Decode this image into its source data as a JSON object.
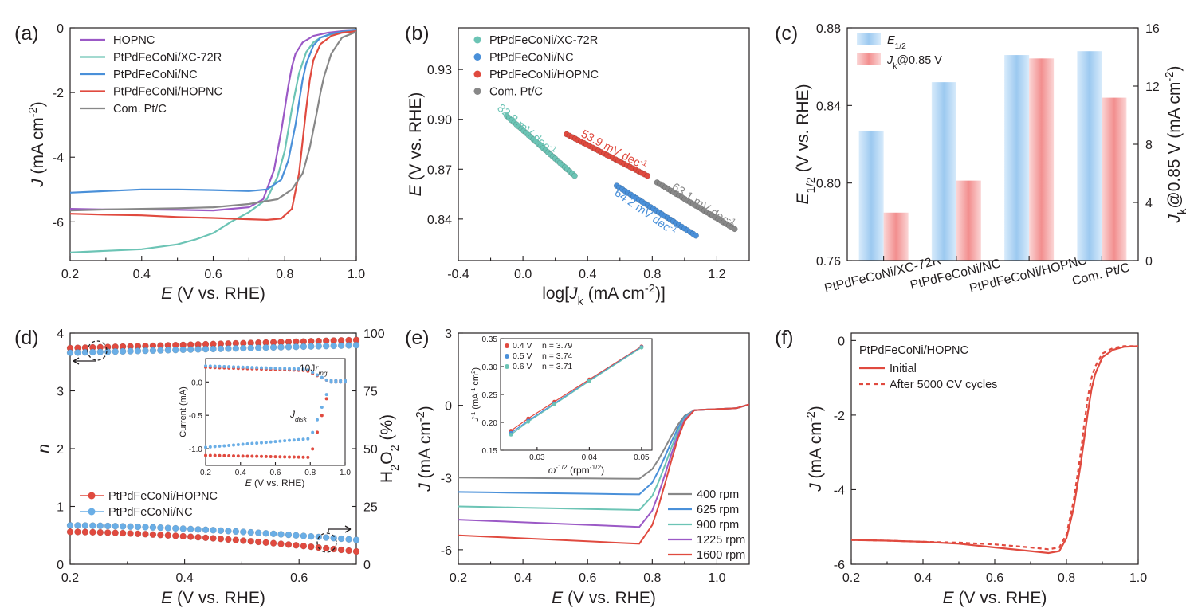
{
  "chart_data": [
    {
      "id": "a",
      "type": "line",
      "panel_label": "(a)",
      "xlabel": "E (V vs. RHE)",
      "ylabel": "J (mA cm-2)",
      "xlim": [
        0.2,
        1.0
      ],
      "ylim": [
        -7.2,
        0
      ],
      "xticks": [
        0.2,
        0.4,
        0.6,
        0.8,
        1.0
      ],
      "yticks": [
        -6,
        -4,
        -2,
        0
      ],
      "xtick_labels": [
        "0.2",
        "0.4",
        "0.6",
        "0.8",
        "1.0"
      ],
      "ytick_labels": [
        "-6",
        "-4",
        "-2",
        "0"
      ],
      "legend": "top-left",
      "series": [
        {
          "name": "HOPNC",
          "color": "#9b59c6",
          "x": [
            0.2,
            0.3,
            0.4,
            0.5,
            0.6,
            0.7,
            0.74,
            0.77,
            0.79,
            0.8,
            0.81,
            0.82,
            0.83,
            0.85,
            0.88,
            0.92,
            0.96,
            1.0
          ],
          "y": [
            -5.6,
            -5.62,
            -5.62,
            -5.63,
            -5.65,
            -5.55,
            -5.3,
            -4.4,
            -3.2,
            -2.5,
            -1.8,
            -1.2,
            -0.8,
            -0.45,
            -0.25,
            -0.15,
            -0.1,
            -0.08
          ]
        },
        {
          "name": "PtPdFeCoNi/XC-72R",
          "color": "#6cc4b5",
          "x": [
            0.2,
            0.3,
            0.4,
            0.5,
            0.55,
            0.6,
            0.65,
            0.7,
            0.75,
            0.78,
            0.8,
            0.82,
            0.84,
            0.86,
            0.88,
            0.9,
            0.93,
            0.97,
            1.0
          ],
          "y": [
            -6.95,
            -6.9,
            -6.85,
            -6.7,
            -6.55,
            -6.35,
            -6.0,
            -5.7,
            -5.3,
            -4.6,
            -3.8,
            -2.5,
            -1.4,
            -0.75,
            -0.45,
            -0.3,
            -0.2,
            -0.12,
            -0.08
          ]
        },
        {
          "name": "PtPdFeCoNi/NC",
          "color": "#4a90d9",
          "x": [
            0.2,
            0.3,
            0.4,
            0.5,
            0.6,
            0.7,
            0.75,
            0.79,
            0.81,
            0.83,
            0.84,
            0.85,
            0.86,
            0.88,
            0.9,
            0.93,
            0.97,
            1.0
          ],
          "y": [
            -5.1,
            -5.05,
            -5.0,
            -5.0,
            -5.02,
            -5.05,
            -5.0,
            -4.7,
            -4.1,
            -3.0,
            -2.3,
            -1.6,
            -1.1,
            -0.55,
            -0.3,
            -0.18,
            -0.1,
            -0.08
          ]
        },
        {
          "name": "PtPdFeCoNi/HOPNC",
          "color": "#e04a3f",
          "x": [
            0.2,
            0.3,
            0.4,
            0.5,
            0.6,
            0.7,
            0.75,
            0.79,
            0.82,
            0.84,
            0.85,
            0.86,
            0.87,
            0.88,
            0.9,
            0.93,
            0.96,
            1.0
          ],
          "y": [
            -5.75,
            -5.78,
            -5.8,
            -5.85,
            -5.88,
            -5.92,
            -5.94,
            -5.9,
            -5.6,
            -4.5,
            -3.5,
            -2.5,
            -1.6,
            -1.0,
            -0.5,
            -0.25,
            -0.15,
            -0.1
          ]
        },
        {
          "name": "Com. Pt/C",
          "color": "#888888",
          "x": [
            0.2,
            0.3,
            0.4,
            0.5,
            0.6,
            0.7,
            0.78,
            0.82,
            0.85,
            0.87,
            0.89,
            0.9,
            0.91,
            0.93,
            0.96,
            1.0
          ],
          "y": [
            -5.65,
            -5.62,
            -5.6,
            -5.58,
            -5.55,
            -5.45,
            -5.3,
            -5.0,
            -4.5,
            -3.7,
            -2.6,
            -2.0,
            -1.5,
            -0.8,
            -0.3,
            -0.12
          ]
        }
      ]
    },
    {
      "id": "b",
      "type": "scatter",
      "panel_label": "(b)",
      "xlabel": "log[Jk (mA cm-2)]",
      "ylabel": "E (V vs. RHE)",
      "xlim": [
        -0.4,
        1.4
      ],
      "ylim": [
        0.815,
        0.955
      ],
      "xticks": [
        -0.4,
        0.0,
        0.4,
        0.8,
        1.2
      ],
      "yticks": [
        0.84,
        0.87,
        0.9,
        0.93
      ],
      "xtick_labels": [
        "-0.4",
        "0.0",
        "0.4",
        "0.8",
        "1.2"
      ],
      "ytick_labels": [
        "0.84",
        "0.87",
        "0.90",
        "0.93"
      ],
      "legend": "top-left",
      "series": [
        {
          "name": "PtPdFeCoNi/XC-72R",
          "color": "#6cc4b5",
          "x_range": [
            -0.1,
            0.32
          ],
          "e_range": [
            0.902,
            0.866
          ],
          "slope_label": "82.8 mV dec-1"
        },
        {
          "name": "PtPdFeCoNi/NC",
          "color": "#4a90d9",
          "x_range": [
            0.58,
            1.07
          ],
          "e_range": [
            0.86,
            0.83
          ],
          "slope_label": "64.2 mV dec-1"
        },
        {
          "name": "PtPdFeCoNi/HOPNC",
          "color": "#e04a3f",
          "x_range": [
            0.27,
            0.77
          ],
          "e_range": [
            0.891,
            0.866
          ],
          "slope_label": "53.9 mV dec-1"
        },
        {
          "name": "Com. Pt/C",
          "color": "#888888",
          "x_range": [
            0.83,
            1.31
          ],
          "e_range": [
            0.862,
            0.834
          ],
          "slope_label": "63.1 mV dec-1"
        }
      ]
    },
    {
      "id": "c",
      "type": "bar",
      "panel_label": "(c)",
      "categories": [
        "PtPdFeCoNi/XC-72R",
        "PtPdFeCoNi/NC",
        "PtPdFeCoNi/HOPNC",
        "Com. Pt/C"
      ],
      "ylabel_left": "E1/2 (V vs. RHE)",
      "ylabel_right": "Jk@0.85 V (mA cm-2)",
      "ylim_left": [
        0.76,
        0.88
      ],
      "ylim_right": [
        0,
        16
      ],
      "yticks_left": [
        0.76,
        0.8,
        0.84,
        0.88
      ],
      "yticks_right": [
        0,
        4,
        8,
        12,
        16
      ],
      "ytick_labels_left": [
        "0.76",
        "0.80",
        "0.84",
        "0.88"
      ],
      "ytick_labels_right": [
        "0",
        "4",
        "8",
        "12",
        "16"
      ],
      "legend": "top-left",
      "series": [
        {
          "name": "E1/2",
          "axis": "left",
          "color": "#9cc9f0",
          "values": [
            0.827,
            0.852,
            0.866,
            0.868
          ]
        },
        {
          "name": "Jk@0.85 V",
          "axis": "right",
          "color": "#f28e8e",
          "values": [
            3.3,
            5.5,
            13.9,
            11.2
          ]
        }
      ]
    },
    {
      "id": "d",
      "type": "scatter",
      "panel_label": "(d)",
      "xlabel": "E (V vs. RHE)",
      "ylabel_left": "n",
      "ylabel_right": "H2O2 (%)",
      "xlim": [
        0.2,
        0.7
      ],
      "ylim_left": [
        0,
        4
      ],
      "ylim_right": [
        0,
        100
      ],
      "xticks": [
        0.2,
        0.4,
        0.6
      ],
      "yticks_left": [
        0,
        1,
        2,
        3,
        4
      ],
      "yticks_right": [
        0,
        25,
        50,
        75,
        100
      ],
      "xtick_labels": [
        "0.2",
        "0.4",
        "0.6"
      ],
      "ytick_labels_left": [
        "0",
        "1",
        "2",
        "3",
        "4"
      ],
      "ytick_labels_right": [
        "0",
        "25",
        "50",
        "75",
        "100"
      ],
      "legend": "bottom-left",
      "series": [
        {
          "name": "PtPdFeCoNi/HOPNC",
          "color": "#e04a3f",
          "n_range": [
            3.74,
            3.88
          ],
          "h2o2_range": [
            14,
            5.5
          ]
        },
        {
          "name": "PtPdFeCoNi/NC",
          "color": "#6aaee6",
          "n_range": [
            3.66,
            3.79
          ],
          "h2o2_range": [
            16.8,
            10.5
          ]
        }
      ],
      "inset": {
        "xlabel": "E (V vs. RHE)",
        "ylabel": "Current (mA)",
        "xlim": [
          0.2,
          1.0
        ],
        "ylim": [
          -1.25,
          0.35
        ],
        "xticks": [
          0.2,
          0.4,
          0.6,
          0.8,
          1.0
        ],
        "yticks": [
          -1.0,
          -0.5,
          0.0
        ],
        "xtick_labels": [
          "0.2",
          "0.4",
          "0.6",
          "0.8",
          "1.0"
        ],
        "ytick_labels": [
          "-1.0",
          "-0.5",
          "0.0"
        ],
        "annotations": [
          "10Jring",
          "Jdisk"
        ]
      }
    },
    {
      "id": "e",
      "type": "line",
      "panel_label": "(e)",
      "xlabel": "E (V vs. RHE)",
      "ylabel": "J (mA cm-2)",
      "xlim": [
        0.2,
        1.1
      ],
      "ylim": [
        -6.6,
        3
      ],
      "xticks": [
        0.2,
        0.4,
        0.6,
        0.8,
        1.0
      ],
      "yticks": [
        -6,
        -3,
        0,
        3
      ],
      "xtick_labels": [
        "0.2",
        "0.4",
        "0.6",
        "0.8",
        "1.0"
      ],
      "ytick_labels": [
        "-6",
        "-3",
        "0",
        "3"
      ],
      "legend": "bottom-right",
      "series": [
        {
          "name": "400 rpm",
          "color": "#888888",
          "plateau": -3.0,
          "plateau_end": -3.05
        },
        {
          "name": "625 rpm",
          "color": "#4a90d9",
          "plateau": -3.6,
          "plateau_end": -3.7
        },
        {
          "name": "900 rpm",
          "color": "#6cc4b5",
          "plateau": -4.2,
          "plateau_end": -4.35
        },
        {
          "name": "1225 rpm",
          "color": "#9b59c6",
          "plateau": -4.75,
          "plateau_end": -5.05
        },
        {
          "name": "1600 rpm",
          "color": "#e04a3f",
          "plateau": -5.4,
          "plateau_end": -5.75
        }
      ],
      "inset": {
        "xlabel": "ω-1/2 (rpm-1/2)",
        "ylabel": "J-1 (mA-1 cm2)",
        "xlim": [
          0.023,
          0.052
        ],
        "ylim": [
          0.15,
          0.35
        ],
        "xticks": [
          0.03,
          0.04,
          0.05
        ],
        "yticks": [
          0.15,
          0.2,
          0.25,
          0.3,
          0.35
        ],
        "xtick_labels": [
          "0.03",
          "0.04",
          "0.05"
        ],
        "ytick_labels": [
          "0.15",
          "0.20",
          "0.25",
          "0.30",
          "0.35"
        ],
        "series": [
          {
            "name": "0.4 V",
            "n_label": "n = 3.79",
            "color": "#e04a3f",
            "x": [
              0.025,
              0.0283,
              0.0333,
              0.04,
              0.05
            ],
            "y": [
              0.185,
              0.207,
              0.237,
              0.277,
              0.336
            ]
          },
          {
            "name": "0.5 V",
            "n_label": "n = 3.74",
            "color": "#4a90d9",
            "x": [
              0.025,
              0.0283,
              0.0333,
              0.04,
              0.05
            ],
            "y": [
              0.181,
              0.203,
              0.234,
              0.275,
              0.335
            ]
          },
          {
            "name": "0.6 V",
            "n_label": "n = 3.71",
            "color": "#6cc4b5",
            "x": [
              0.025,
              0.0283,
              0.0333,
              0.04,
              0.05
            ],
            "y": [
              0.178,
              0.201,
              0.232,
              0.274,
              0.334
            ]
          }
        ]
      }
    },
    {
      "id": "f",
      "type": "line",
      "panel_label": "(f)",
      "title": "PtPdFeCoNi/HOPNC",
      "xlabel": "E (V vs. RHE)",
      "ylabel": "J (mA cm-2)",
      "xlim": [
        0.2,
        1.0
      ],
      "ylim": [
        -6,
        0.2
      ],
      "xticks": [
        0.2,
        0.4,
        0.6,
        0.8,
        1.0
      ],
      "yticks": [
        -6,
        -4,
        -2,
        0
      ],
      "xtick_labels": [
        "0.2",
        "0.4",
        "0.6",
        "0.8",
        "1.0"
      ],
      "ytick_labels": [
        "-6",
        "-4",
        "-2",
        "0"
      ],
      "legend": "top-left",
      "series": [
        {
          "name": "Initial",
          "style": "solid",
          "color": "#e04a3f",
          "x": [
            0.2,
            0.3,
            0.4,
            0.5,
            0.6,
            0.7,
            0.75,
            0.78,
            0.8,
            0.82,
            0.84,
            0.85,
            0.86,
            0.87,
            0.88,
            0.9,
            0.93,
            0.96,
            1.0
          ],
          "y": [
            -5.35,
            -5.37,
            -5.4,
            -5.45,
            -5.55,
            -5.65,
            -5.7,
            -5.65,
            -5.3,
            -4.5,
            -3.3,
            -2.6,
            -1.9,
            -1.3,
            -0.9,
            -0.45,
            -0.25,
            -0.17,
            -0.15
          ]
        },
        {
          "name": "After 5000 CV cycles",
          "style": "dashed",
          "color": "#e04a3f",
          "x": [
            0.2,
            0.3,
            0.4,
            0.5,
            0.6,
            0.7,
            0.75,
            0.78,
            0.8,
            0.82,
            0.84,
            0.85,
            0.86,
            0.87,
            0.88,
            0.9,
            0.93,
            0.96,
            1.0
          ],
          "y": [
            -5.35,
            -5.37,
            -5.4,
            -5.42,
            -5.47,
            -5.55,
            -5.6,
            -5.55,
            -5.2,
            -4.3,
            -3.0,
            -2.2,
            -1.5,
            -1.0,
            -0.7,
            -0.35,
            -0.2,
            -0.15,
            -0.15
          ]
        }
      ]
    }
  ]
}
